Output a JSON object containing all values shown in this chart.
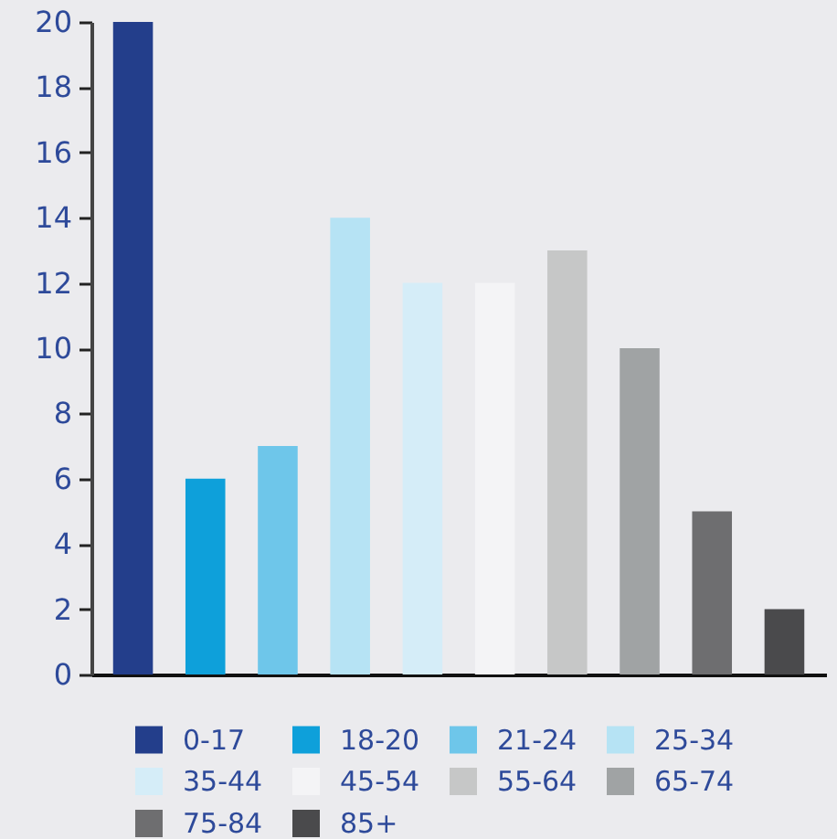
{
  "chart_data": {
    "type": "bar",
    "stacked": true,
    "categories": [
      null,
      null,
      null,
      null,
      null,
      null,
      null,
      null,
      null,
      null
    ],
    "series": [
      {
        "name": "0-17",
        "color": "#233e8b",
        "values": [
          20,
          null,
          null,
          null,
          null,
          null,
          null,
          null,
          null,
          null
        ]
      },
      {
        "name": "18-20",
        "color": "#0ea0da",
        "values": [
          null,
          6,
          null,
          null,
          null,
          null,
          null,
          null,
          null,
          null
        ]
      },
      {
        "name": "21-24",
        "color": "#6ec6ea",
        "values": [
          null,
          null,
          7,
          null,
          null,
          null,
          null,
          null,
          null,
          null
        ]
      },
      {
        "name": "25-34",
        "color": "#b6e3f4",
        "values": [
          null,
          null,
          null,
          14,
          null,
          null,
          null,
          null,
          null,
          null
        ]
      },
      {
        "name": "35-44",
        "color": "#d5edf8",
        "values": [
          null,
          null,
          null,
          null,
          12,
          null,
          null,
          null,
          null,
          null
        ]
      },
      {
        "name": "45-54",
        "color": "#f4f4f6",
        "values": [
          null,
          null,
          null,
          null,
          null,
          12,
          null,
          null,
          null,
          null
        ]
      },
      {
        "name": "55-64",
        "color": "#c6c7c7",
        "values": [
          null,
          null,
          null,
          null,
          null,
          null,
          13,
          null,
          null,
          null
        ]
      },
      {
        "name": "65-74",
        "color": "#a0a3a4",
        "values": [
          null,
          null,
          null,
          null,
          null,
          null,
          null,
          10,
          null,
          null
        ]
      },
      {
        "name": "75-84",
        "color": "#6e6e70",
        "values": [
          null,
          null,
          null,
          null,
          null,
          null,
          null,
          null,
          5,
          null
        ]
      },
      {
        "name": "85+",
        "color": "#4a4a4c",
        "values": [
          null,
          null,
          null,
          null,
          null,
          null,
          null,
          null,
          null,
          2
        ]
      }
    ],
    "ylim": [
      0,
      20
    ],
    "yticks": [
      0,
      2,
      4,
      6,
      8,
      10,
      12,
      14,
      16,
      18,
      20
    ],
    "legend": "bottom",
    "tick_labels": "y"
  }
}
